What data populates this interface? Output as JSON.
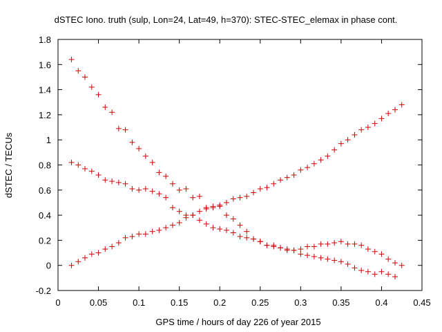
{
  "chart_data": {
    "type": "scatter",
    "title": "dSTEC Iono. truth (sulp, Lon=24, Lat=49, h=370): STEC-STEC_elemax in phase cont.",
    "xlabel": "GPS time / hours of day 226 of year 2015",
    "ylabel": "dSTEC  / TECUs",
    "xlim": [
      0,
      0.45
    ],
    "ylim": [
      -0.2,
      1.8
    ],
    "xticks": [
      "0",
      "0.05",
      "0.1",
      "0.15",
      "0.2",
      "0.25",
      "0.3",
      "0.35",
      "0.4",
      "0.45"
    ],
    "yticks": [
      "-0.2",
      "0",
      "0.2",
      "0.4",
      "0.6",
      "0.8",
      "1",
      "1.2",
      "1.4",
      "1.6",
      "1.8"
    ],
    "marker": "+",
    "color": "#cc0000",
    "grid": false,
    "series": [
      {
        "x": [
          0.0167,
          0.025,
          0.0333,
          0.0417,
          0.05,
          0.0583,
          0.0667,
          0.075,
          0.0833,
          0.0917,
          0.1,
          0.1083,
          0.1167,
          0.125,
          0.1333,
          0.1417,
          0.15,
          0.1583,
          0.1667,
          0.175,
          0.1833,
          0.1917,
          0.2,
          0.2083,
          0.2167,
          0.225,
          0.2333,
          0.2417,
          0.25,
          0.2583,
          0.2667,
          0.275,
          0.2833,
          0.2917,
          0.3,
          0.3083,
          0.3167,
          0.325,
          0.3333,
          0.3417,
          0.35,
          0.3583,
          0.3667,
          0.375,
          0.3833,
          0.3917,
          0.4,
          0.4083,
          0.4167,
          0.425
        ],
        "y": [
          1.64,
          1.55,
          1.5,
          1.42,
          1.36,
          1.26,
          1.22,
          1.09,
          1.08,
          0.98,
          0.93,
          0.87,
          0.82,
          0.74,
          0.71,
          0.65,
          0.6,
          0.61,
          0.54,
          0.55,
          0.46,
          0.46,
          0.47,
          0.4,
          0.37,
          0.32,
          0.27,
          0.21,
          0.19,
          0.16,
          0.15,
          0.14,
          0.12,
          0.12,
          0.13,
          0.15,
          0.15,
          0.17,
          0.17,
          0.18,
          0.19,
          0.17,
          0.17,
          0.16,
          0.13,
          0.11,
          0.09,
          0.05,
          0.02,
          0.0
        ]
      },
      {
        "x": [
          0.0167,
          0.025,
          0.0333,
          0.0417,
          0.05,
          0.0583,
          0.0667,
          0.075,
          0.0833,
          0.0917,
          0.1,
          0.1083,
          0.1167,
          0.125,
          0.1333,
          0.1417,
          0.15,
          0.1583,
          0.1667,
          0.175,
          0.1833,
          0.1917,
          0.2,
          0.2083,
          0.2167,
          0.225,
          0.2333,
          0.2417,
          0.25,
          0.2583,
          0.2667,
          0.275,
          0.2833,
          0.2917,
          0.3,
          0.3083,
          0.3167,
          0.325,
          0.3333,
          0.3417,
          0.35,
          0.3583,
          0.3667,
          0.375,
          0.3833,
          0.3917,
          0.4,
          0.4083,
          0.4167
        ],
        "y": [
          0.82,
          0.8,
          0.77,
          0.75,
          0.72,
          0.68,
          0.67,
          0.66,
          0.65,
          0.61,
          0.6,
          0.61,
          0.59,
          0.57,
          0.54,
          0.46,
          0.43,
          0.4,
          0.4,
          0.36,
          0.33,
          0.3,
          0.29,
          0.28,
          0.26,
          0.23,
          0.22,
          0.21,
          0.19,
          0.16,
          0.16,
          0.14,
          0.13,
          0.12,
          0.09,
          0.08,
          0.07,
          0.06,
          0.05,
          0.04,
          0.03,
          0.01,
          -0.02,
          -0.04,
          -0.05,
          -0.07,
          -0.05,
          -0.07,
          -0.09
        ]
      },
      {
        "x": [
          0.0167,
          0.025,
          0.0333,
          0.0417,
          0.05,
          0.0583,
          0.0667,
          0.075,
          0.0833,
          0.0917,
          0.1,
          0.1083,
          0.1167,
          0.125,
          0.1333,
          0.1417,
          0.15,
          0.1583,
          0.1667,
          0.175,
          0.1833,
          0.1917,
          0.2,
          0.2083,
          0.2167,
          0.225,
          0.2333,
          0.2417,
          0.25,
          0.2583,
          0.2667,
          0.275,
          0.2833,
          0.2917,
          0.3,
          0.3083,
          0.3167,
          0.325,
          0.3333,
          0.3417,
          0.35,
          0.3583,
          0.3667,
          0.375,
          0.3833,
          0.3917,
          0.4,
          0.4083,
          0.4167,
          0.425
        ],
        "y": [
          0.0,
          0.03,
          0.06,
          0.09,
          0.1,
          0.13,
          0.15,
          0.18,
          0.22,
          0.23,
          0.25,
          0.25,
          0.27,
          0.28,
          0.3,
          0.32,
          0.34,
          0.38,
          0.4,
          0.43,
          0.45,
          0.47,
          0.48,
          0.5,
          0.53,
          0.54,
          0.55,
          0.58,
          0.61,
          0.62,
          0.65,
          0.68,
          0.7,
          0.72,
          0.76,
          0.78,
          0.81,
          0.84,
          0.87,
          0.92,
          0.97,
          1.0,
          1.04,
          1.08,
          1.1,
          1.13,
          1.17,
          1.21,
          1.24,
          1.28
        ]
      }
    ]
  }
}
